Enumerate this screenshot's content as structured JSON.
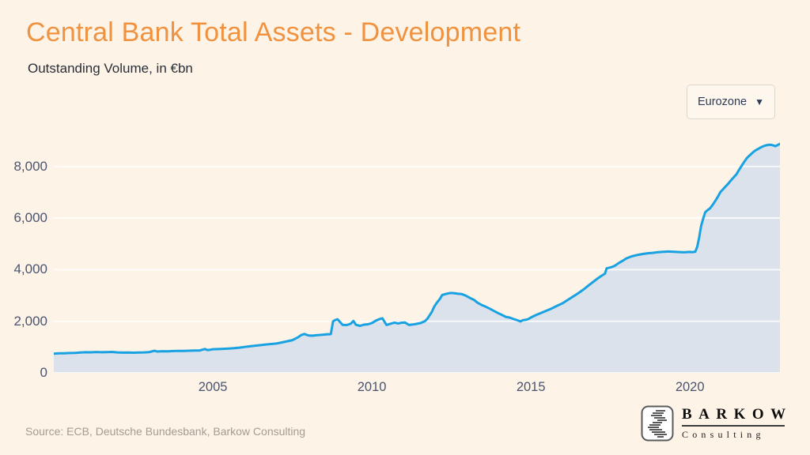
{
  "page": {
    "background": "#fdf3e6",
    "accent": "#f0923f"
  },
  "header": {
    "title": "Central Bank Total Assets - Development",
    "subtitle": "Outstanding Volume, in €bn"
  },
  "controls": {
    "region_dropdown": {
      "value": "Eurozone",
      "caret": "▼"
    }
  },
  "chart_data": {
    "type": "area",
    "title": "Central Bank Total Assets - Development",
    "subtitle": "Outstanding Volume, in €bn",
    "unit": "€bn",
    "grid": "horizontal",
    "x_range": [
      2000,
      2022.83
    ],
    "y_range": [
      0,
      9400
    ],
    "x_ticks": [
      2005,
      2010,
      2015,
      2020
    ],
    "y_ticks": [
      0,
      2000,
      4000,
      6000,
      8000
    ],
    "y_tick_labels": [
      "0",
      "2,000",
      "4,000",
      "6,000",
      "8,000"
    ],
    "grid_color": "#ffffff",
    "series": [
      {
        "name": "Eurozone",
        "line_color": "#18a2e2",
        "fill_color": "#dce2ec",
        "points": [
          [
            2000.0,
            745
          ],
          [
            2000.17,
            755
          ],
          [
            2000.33,
            760
          ],
          [
            2000.5,
            768
          ],
          [
            2000.67,
            775
          ],
          [
            2000.83,
            788
          ],
          [
            2001.0,
            800
          ],
          [
            2001.17,
            795
          ],
          [
            2001.33,
            808
          ],
          [
            2001.5,
            798
          ],
          [
            2001.67,
            806
          ],
          [
            2001.83,
            812
          ],
          [
            2002.0,
            792
          ],
          [
            2002.17,
            783
          ],
          [
            2002.33,
            788
          ],
          [
            2002.5,
            780
          ],
          [
            2002.67,
            786
          ],
          [
            2002.83,
            794
          ],
          [
            2003.0,
            806
          ],
          [
            2003.17,
            858
          ],
          [
            2003.25,
            828
          ],
          [
            2003.42,
            840
          ],
          [
            2003.58,
            832
          ],
          [
            2003.75,
            846
          ],
          [
            2003.92,
            852
          ],
          [
            2004.08,
            848
          ],
          [
            2004.25,
            856
          ],
          [
            2004.42,
            862
          ],
          [
            2004.58,
            868
          ],
          [
            2004.75,
            926
          ],
          [
            2004.83,
            886
          ],
          [
            2004.92,
            896
          ],
          [
            2005.0,
            916
          ],
          [
            2005.17,
            922
          ],
          [
            2005.33,
            932
          ],
          [
            2005.5,
            944
          ],
          [
            2005.67,
            958
          ],
          [
            2005.83,
            978
          ],
          [
            2006.0,
            1004
          ],
          [
            2006.17,
            1028
          ],
          [
            2006.33,
            1052
          ],
          [
            2006.5,
            1074
          ],
          [
            2006.67,
            1098
          ],
          [
            2006.83,
            1118
          ],
          [
            2007.0,
            1136
          ],
          [
            2007.17,
            1178
          ],
          [
            2007.33,
            1222
          ],
          [
            2007.5,
            1268
          ],
          [
            2007.67,
            1372
          ],
          [
            2007.79,
            1472
          ],
          [
            2007.88,
            1506
          ],
          [
            2008.0,
            1452
          ],
          [
            2008.13,
            1438
          ],
          [
            2008.25,
            1456
          ],
          [
            2008.42,
            1472
          ],
          [
            2008.58,
            1490
          ],
          [
            2008.71,
            1500
          ],
          [
            2008.78,
            1990
          ],
          [
            2008.83,
            2040
          ],
          [
            2008.92,
            2076
          ],
          [
            2009.0,
            1972
          ],
          [
            2009.08,
            1858
          ],
          [
            2009.21,
            1852
          ],
          [
            2009.33,
            1902
          ],
          [
            2009.42,
            2012
          ],
          [
            2009.5,
            1862
          ],
          [
            2009.63,
            1822
          ],
          [
            2009.75,
            1868
          ],
          [
            2009.88,
            1884
          ],
          [
            2010.0,
            1928
          ],
          [
            2010.13,
            2026
          ],
          [
            2010.25,
            2088
          ],
          [
            2010.33,
            2116
          ],
          [
            2010.46,
            1856
          ],
          [
            2010.58,
            1902
          ],
          [
            2010.71,
            1948
          ],
          [
            2010.83,
            1912
          ],
          [
            2010.92,
            1942
          ],
          [
            2011.04,
            1952
          ],
          [
            2011.17,
            1856
          ],
          [
            2011.29,
            1874
          ],
          [
            2011.42,
            1902
          ],
          [
            2011.54,
            1932
          ],
          [
            2011.67,
            2006
          ],
          [
            2011.75,
            2108
          ],
          [
            2011.88,
            2352
          ],
          [
            2011.96,
            2566
          ],
          [
            2012.04,
            2712
          ],
          [
            2012.13,
            2854
          ],
          [
            2012.21,
            3016
          ],
          [
            2012.33,
            3058
          ],
          [
            2012.46,
            3096
          ],
          [
            2012.58,
            3088
          ],
          [
            2012.71,
            3066
          ],
          [
            2012.83,
            3052
          ],
          [
            2012.96,
            2988
          ],
          [
            2013.08,
            2906
          ],
          [
            2013.21,
            2828
          ],
          [
            2013.33,
            2712
          ],
          [
            2013.46,
            2628
          ],
          [
            2013.58,
            2564
          ],
          [
            2013.71,
            2486
          ],
          [
            2013.83,
            2406
          ],
          [
            2013.96,
            2322
          ],
          [
            2014.08,
            2252
          ],
          [
            2014.21,
            2172
          ],
          [
            2014.33,
            2142
          ],
          [
            2014.46,
            2086
          ],
          [
            2014.58,
            2036
          ],
          [
            2014.67,
            1994
          ],
          [
            2014.75,
            2042
          ],
          [
            2014.83,
            2056
          ],
          [
            2014.92,
            2086
          ],
          [
            2015.0,
            2146
          ],
          [
            2015.17,
            2246
          ],
          [
            2015.33,
            2326
          ],
          [
            2015.5,
            2416
          ],
          [
            2015.67,
            2506
          ],
          [
            2015.83,
            2602
          ],
          [
            2016.0,
            2702
          ],
          [
            2016.17,
            2836
          ],
          [
            2016.33,
            2962
          ],
          [
            2016.5,
            3096
          ],
          [
            2016.67,
            3246
          ],
          [
            2016.83,
            3406
          ],
          [
            2017.0,
            3566
          ],
          [
            2017.13,
            3686
          ],
          [
            2017.25,
            3786
          ],
          [
            2017.33,
            3846
          ],
          [
            2017.38,
            4052
          ],
          [
            2017.5,
            4086
          ],
          [
            2017.63,
            4146
          ],
          [
            2017.75,
            4246
          ],
          [
            2017.88,
            4342
          ],
          [
            2018.0,
            4436
          ],
          [
            2018.17,
            4516
          ],
          [
            2018.33,
            4566
          ],
          [
            2018.5,
            4606
          ],
          [
            2018.67,
            4636
          ],
          [
            2018.83,
            4652
          ],
          [
            2019.0,
            4678
          ],
          [
            2019.17,
            4692
          ],
          [
            2019.33,
            4702
          ],
          [
            2019.5,
            4692
          ],
          [
            2019.67,
            4682
          ],
          [
            2019.83,
            4672
          ],
          [
            2020.0,
            4688
          ],
          [
            2020.08,
            4678
          ],
          [
            2020.17,
            4696
          ],
          [
            2020.23,
            4892
          ],
          [
            2020.29,
            5252
          ],
          [
            2020.35,
            5686
          ],
          [
            2020.42,
            5992
          ],
          [
            2020.48,
            6226
          ],
          [
            2020.54,
            6292
          ],
          [
            2020.63,
            6376
          ],
          [
            2020.71,
            6502
          ],
          [
            2020.79,
            6652
          ],
          [
            2020.88,
            6832
          ],
          [
            2020.96,
            7012
          ],
          [
            2021.04,
            7116
          ],
          [
            2021.13,
            7236
          ],
          [
            2021.21,
            7342
          ],
          [
            2021.29,
            7466
          ],
          [
            2021.38,
            7586
          ],
          [
            2021.46,
            7692
          ],
          [
            2021.54,
            7856
          ],
          [
            2021.63,
            8032
          ],
          [
            2021.71,
            8186
          ],
          [
            2021.79,
            8326
          ],
          [
            2021.88,
            8432
          ],
          [
            2021.96,
            8522
          ],
          [
            2022.04,
            8606
          ],
          [
            2022.13,
            8672
          ],
          [
            2022.21,
            8726
          ],
          [
            2022.29,
            8776
          ],
          [
            2022.38,
            8816
          ],
          [
            2022.46,
            8836
          ],
          [
            2022.54,
            8842
          ],
          [
            2022.63,
            8812
          ],
          [
            2022.69,
            8786
          ],
          [
            2022.75,
            8826
          ],
          [
            2022.83,
            8876
          ]
        ]
      }
    ]
  },
  "footer": {
    "source": "Source: ECB, Deutsche Bundesbank, Barkow Consulting",
    "logo": {
      "name": "BARKOW",
      "sub": "Consulting"
    }
  }
}
